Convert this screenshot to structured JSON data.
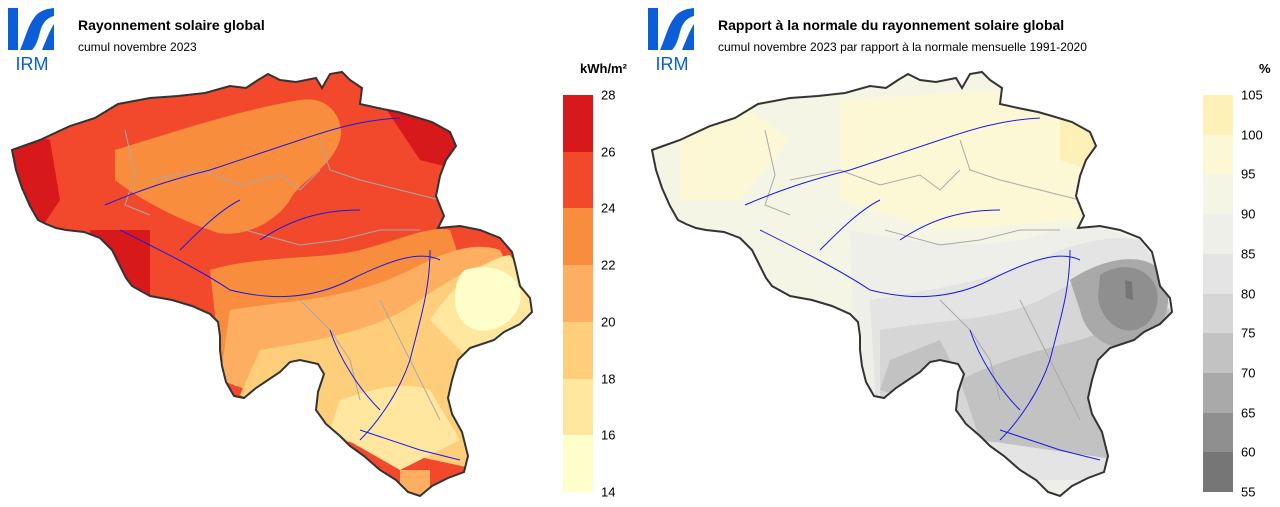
{
  "left_panel": {
    "logo_text": "IRM",
    "title": "Rayonnement solaire global",
    "subtitle": "cumul novembre 2023",
    "unit": "kWh/m²",
    "legend": {
      "ticks": [
        "28",
        "26",
        "24",
        "22",
        "20",
        "18",
        "16",
        "14"
      ],
      "colors": [
        "#d7191c",
        "#f2492d",
        "#f98d3e",
        "#fdae61",
        "#fece7a",
        "#ffe7a0",
        "#ffffcc"
      ]
    }
  },
  "right_panel": {
    "logo_text": "IRM",
    "title": "Rapport à la normale du rayonnement solaire global",
    "subtitle": "cumul novembre 2023 par rapport à la normale mensuelle 1991-2020",
    "unit": "%",
    "legend": {
      "ticks": [
        "105",
        "100",
        "95",
        "90",
        "85",
        "80",
        "75",
        "70",
        "65",
        "60",
        "55"
      ],
      "colors": [
        "#fdf1b8",
        "#fcf8d6",
        "#f5f5e6",
        "#efefea",
        "#e4e4e4",
        "#d6d6d6",
        "#c2c2c2",
        "#a9a9a9",
        "#8f8f8f",
        "#767676"
      ]
    }
  }
}
